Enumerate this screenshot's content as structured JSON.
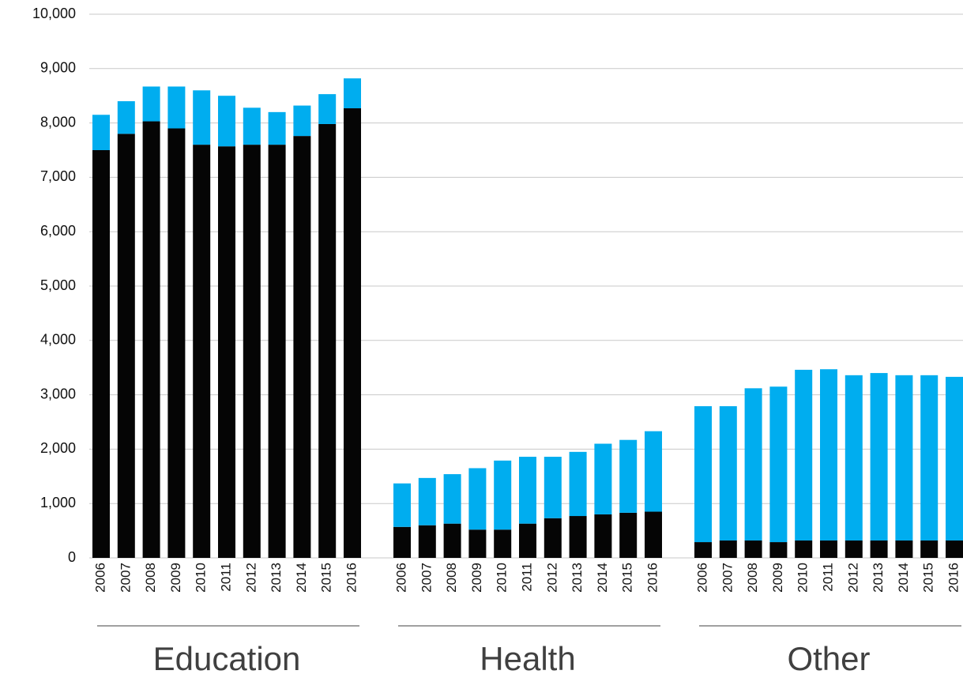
{
  "chart_data": {
    "type": "bar",
    "stacked": true,
    "ylim": [
      0,
      10000
    ],
    "yticks": [
      0,
      {
        "value": 1000,
        "label": "1,000"
      },
      {
        "value": 2000,
        "label": "2,000"
      },
      {
        "value": 3000,
        "label": "3,000"
      },
      {
        "value": 4000,
        "label": "4,000"
      },
      {
        "value": 5000,
        "label": "5,000"
      },
      {
        "value": 6000,
        "label": "6,000"
      },
      {
        "value": 7000,
        "label": "7,000"
      },
      {
        "value": 8000,
        "label": "8,000"
      },
      {
        "value": 9000,
        "label": "9,000"
      },
      {
        "value": 10000,
        "label": "10,000"
      }
    ],
    "grid": true,
    "groups": [
      {
        "label": "Education",
        "categories": [
          "2006",
          "2007",
          "2008",
          "2009",
          "2010",
          "2011",
          "2012",
          "2013",
          "2014",
          "2015",
          "2016"
        ],
        "series": [
          {
            "color": "#050505",
            "values": [
              7500,
              7800,
              8030,
              7900,
              7600,
              7570,
              7600,
              7600,
              7760,
              7980,
              8270
            ]
          },
          {
            "color": "#00adef",
            "values": [
              650,
              600,
              640,
              770,
              1000,
              930,
              680,
              600,
              560,
              550,
              550
            ]
          }
        ]
      },
      {
        "label": "Health",
        "categories": [
          "2006",
          "2007",
          "2008",
          "2009",
          "2010",
          "2011",
          "2012",
          "2013",
          "2014",
          "2015",
          "2016"
        ],
        "series": [
          {
            "color": "#050505",
            "values": [
              570,
              600,
              630,
              520,
              520,
              630,
              730,
              770,
              800,
              830,
              850
            ]
          },
          {
            "color": "#00adef",
            "values": [
              800,
              870,
              910,
              1130,
              1270,
              1230,
              1130,
              1180,
              1300,
              1340,
              1480
            ]
          }
        ]
      },
      {
        "label": "Other",
        "categories": [
          "2006",
          "2007",
          "2008",
          "2009",
          "2010",
          "2011",
          "2012",
          "2013",
          "2014",
          "2015",
          "2016"
        ],
        "series": [
          {
            "color": "#050505",
            "values": [
              290,
              320,
              320,
              290,
              320,
              320,
              320,
              320,
              320,
              320,
              320
            ]
          },
          {
            "color": "#00adef",
            "values": [
              2500,
              2470,
              2800,
              2860,
              3140,
              3150,
              3040,
              3080,
              3040,
              3040,
              3010
            ]
          }
        ]
      }
    ]
  }
}
